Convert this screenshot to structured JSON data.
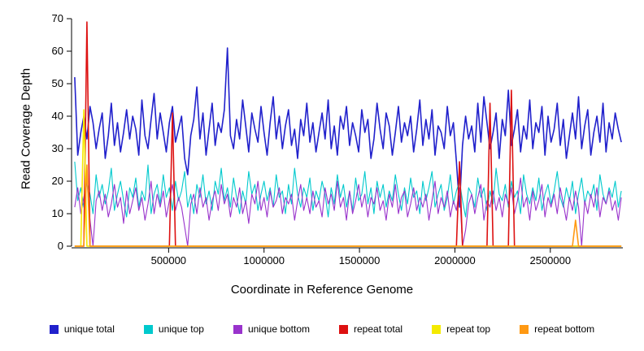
{
  "chart_data": {
    "type": "line",
    "title": "",
    "xlabel": "Coordinate in Reference Genome",
    "ylabel": "Read Coverage Depth",
    "xlim": [
      0,
      2880000
    ],
    "ylim": [
      0,
      70
    ],
    "x_ticks": [
      500000,
      1000000,
      1500000,
      2000000,
      2500000
    ],
    "y_ticks": [
      0,
      10,
      20,
      30,
      40,
      50,
      60,
      70
    ],
    "grid": false,
    "legend_position": "bottom",
    "n_points": 180,
    "x_start": 8000,
    "x_step": 16000,
    "series": [
      {
        "name": "unique total",
        "color": "#2121cc",
        "width": 1.6,
        "values": [
          52,
          28,
          35,
          40,
          33,
          43,
          38,
          30,
          36,
          41,
          27,
          34,
          44,
          31,
          38,
          29,
          35,
          42,
          33,
          40,
          36,
          28,
          45,
          34,
          30,
          39,
          47,
          33,
          41,
          35,
          29,
          38,
          43,
          32,
          36,
          40,
          27,
          22,
          34,
          39,
          49,
          33,
          41,
          28,
          36,
          44,
          31,
          38,
          35,
          42,
          61,
          34,
          30,
          39,
          33,
          45,
          37,
          29,
          41,
          36,
          32,
          43,
          35,
          28,
          38,
          46,
          33,
          40,
          30,
          37,
          42,
          31,
          36,
          27,
          39,
          34,
          44,
          32,
          38,
          29,
          35,
          41,
          33,
          45,
          30,
          37,
          28,
          40,
          36,
          43,
          31,
          38,
          34,
          29,
          42,
          35,
          39,
          27,
          33,
          44,
          36,
          30,
          41,
          37,
          28,
          35,
          43,
          32,
          38,
          34,
          40,
          29,
          36,
          45,
          31,
          39,
          33,
          42,
          28,
          37,
          35,
          30,
          43,
          34,
          38,
          26,
          12,
          31,
          40,
          33,
          37,
          29,
          44,
          32,
          46,
          38,
          30,
          35,
          41,
          27,
          39,
          34,
          48,
          31,
          36,
          42,
          29,
          37,
          33,
          45,
          30,
          38,
          35,
          43,
          28,
          40,
          32,
          36,
          44,
          31,
          39,
          27,
          34,
          41,
          33,
          46,
          30,
          37,
          42,
          28,
          35,
          40,
          32,
          44,
          29,
          38,
          33,
          41,
          36,
          32
        ]
      },
      {
        "name": "unique top",
        "color": "#00c9cd",
        "width": 1.1,
        "values": [
          26,
          14,
          18,
          12,
          20,
          16,
          10,
          22,
          15,
          19,
          13,
          17,
          24,
          11,
          16,
          20,
          14,
          9,
          18,
          15,
          21,
          12,
          17,
          14,
          25,
          10,
          16,
          19,
          13,
          22,
          15,
          18,
          11,
          20,
          14,
          17,
          23,
          12,
          16,
          10,
          19,
          15,
          22,
          13,
          17,
          11,
          20,
          16,
          24,
          14,
          18,
          12,
          21,
          15,
          10,
          17,
          13,
          23,
          16,
          19,
          11,
          16,
          20,
          14,
          18,
          12,
          22,
          15,
          17,
          10,
          19,
          13,
          24,
          16,
          12,
          18,
          15,
          21,
          11,
          17,
          14,
          20,
          16,
          9,
          18,
          13,
          22,
          15,
          19,
          12,
          17,
          11,
          21,
          14,
          16,
          23,
          13,
          18,
          10,
          20,
          15,
          19,
          12,
          17,
          14,
          22,
          16,
          11,
          18,
          13,
          21,
          15,
          17,
          10,
          20,
          14,
          18,
          23,
          12,
          16,
          19,
          11,
          15,
          22,
          13,
          17,
          20,
          14,
          9,
          18,
          16,
          12,
          21,
          15,
          18,
          11,
          17,
          13,
          24,
          16,
          14,
          19,
          12,
          20,
          15,
          17,
          10,
          22,
          16,
          13,
          18,
          14,
          21,
          11,
          16,
          19,
          13,
          17,
          23,
          15,
          12,
          18,
          14,
          20,
          10,
          16,
          21,
          13,
          17,
          15,
          19,
          11,
          22,
          16,
          13,
          18,
          15,
          20,
          12,
          17
        ]
      },
      {
        "name": "unique bottom",
        "color": "#9933cc",
        "width": 1.1,
        "values": [
          12,
          18,
          10,
          15,
          20,
          8,
          0,
          14,
          17,
          11,
          16,
          9,
          13,
          19,
          12,
          15,
          7,
          17,
          10,
          14,
          18,
          11,
          15,
          8,
          13,
          20,
          10,
          16,
          12,
          17,
          9,
          14,
          19,
          11,
          15,
          12,
          6,
          0,
          13,
          16,
          10,
          18,
          12,
          15,
          8,
          14,
          17,
          11,
          19,
          13,
          16,
          9,
          15,
          12,
          18,
          10,
          14,
          7,
          16,
          13,
          20,
          11,
          15,
          9,
          17,
          12,
          14,
          18,
          10,
          15,
          13,
          16,
          8,
          14,
          19,
          11,
          15,
          10,
          17,
          12,
          14,
          9,
          18,
          13,
          16,
          11,
          20,
          12,
          15,
          8,
          17,
          10,
          14,
          19,
          12,
          16,
          9,
          15,
          13,
          18,
          11,
          14,
          8,
          16,
          12,
          19,
          10,
          15,
          17,
          9,
          13,
          18,
          11,
          15,
          12,
          16,
          8,
          14,
          20,
          10,
          15,
          12,
          17,
          9,
          14,
          11,
          18,
          0,
          5,
          13,
          16,
          10,
          15,
          19,
          8,
          14,
          12,
          17,
          11,
          15,
          9,
          16,
          13,
          18,
          10,
          14,
          21,
          12,
          15,
          8,
          17,
          11,
          14,
          19,
          9,
          15,
          12,
          16,
          10,
          18,
          13,
          8,
          15,
          11,
          17,
          12,
          0,
          14,
          10,
          16,
          12,
          18,
          9,
          15,
          13,
          17,
          11,
          14,
          8,
          15
        ]
      },
      {
        "name": "repeat total",
        "color": "#dd1111",
        "width": 1.6,
        "base": 0,
        "spikes": [
          [
            4,
            69
          ],
          [
            32,
            41
          ],
          [
            126,
            26
          ],
          [
            136,
            44
          ],
          [
            143,
            48
          ]
        ]
      },
      {
        "name": "repeat top",
        "color": "#f4ea00",
        "width": 1.6,
        "base": 0,
        "spikes": [
          [
            3,
            42
          ]
        ]
      },
      {
        "name": "repeat bottom",
        "color": "#ff9913",
        "width": 1.6,
        "base": 0,
        "spikes": [
          [
            4,
            25
          ],
          [
            164,
            8
          ]
        ]
      }
    ],
    "legend": [
      {
        "label": "unique total",
        "color": "#2121cc"
      },
      {
        "label": "unique top",
        "color": "#00c9cd"
      },
      {
        "label": "unique bottom",
        "color": "#9933cc"
      },
      {
        "label": "repeat total",
        "color": "#dd1111"
      },
      {
        "label": "repeat top",
        "color": "#f4ea00"
      },
      {
        "label": "repeat bottom",
        "color": "#ff9913"
      }
    ]
  }
}
